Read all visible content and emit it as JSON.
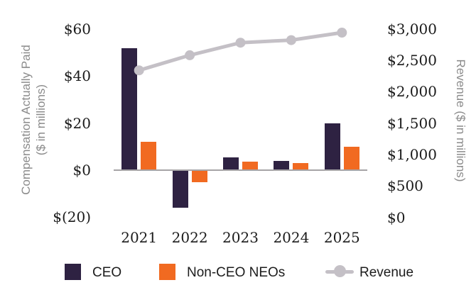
{
  "chart_data": {
    "type": "combo-bar-line",
    "categories": [
      "2021",
      "2022",
      "2023",
      "2024",
      "2025"
    ],
    "series": [
      {
        "name": "CEO",
        "type": "bar",
        "axis": "left",
        "color": "#2E2242",
        "values": [
          52,
          -16,
          5.5,
          4,
          20
        ]
      },
      {
        "name": "Non-CEO NEOs",
        "type": "bar",
        "axis": "left",
        "color": "#F16A21",
        "values": [
          12,
          -5,
          3.5,
          3,
          10
        ]
      },
      {
        "name": "Revenue",
        "type": "line",
        "axis": "right",
        "color": "#C4C0C6",
        "values": [
          2340,
          2580,
          2780,
          2820,
          2940
        ]
      }
    ],
    "left_axis": {
      "label_line1": "Compensation Actually Paid",
      "label_line2": "($ in millions)",
      "ticks": [
        "$60",
        "$40",
        "$20",
        "$0",
        "$(20)"
      ],
      "tick_values": [
        60,
        40,
        20,
        0,
        -20
      ],
      "range": [
        -20,
        60
      ]
    },
    "right_axis": {
      "label": "Revenue ($ in millions)",
      "ticks": [
        "$3,000",
        "$2,500",
        "$2,000",
        "$1,500",
        "$1,000",
        "$500",
        "$0"
      ],
      "tick_values": [
        3000,
        2500,
        2000,
        1500,
        1000,
        500,
        0
      ],
      "range": [
        0,
        3000
      ]
    },
    "legend": [
      {
        "label": "CEO",
        "marker": "square",
        "color": "#2E2242"
      },
      {
        "label": "Non-CEO NEOs",
        "marker": "square",
        "color": "#F16A21"
      },
      {
        "label": "Revenue",
        "marker": "line-dot",
        "color": "#C4C0C6"
      }
    ],
    "layout_hints": {
      "grid": "off",
      "legend_position": "bottom",
      "baseline_color": "#A6A4A6",
      "tick_text_color": "#1B1B1B",
      "axis_title_color": "#8B8B8B",
      "background": "#FFFFFF"
    }
  }
}
